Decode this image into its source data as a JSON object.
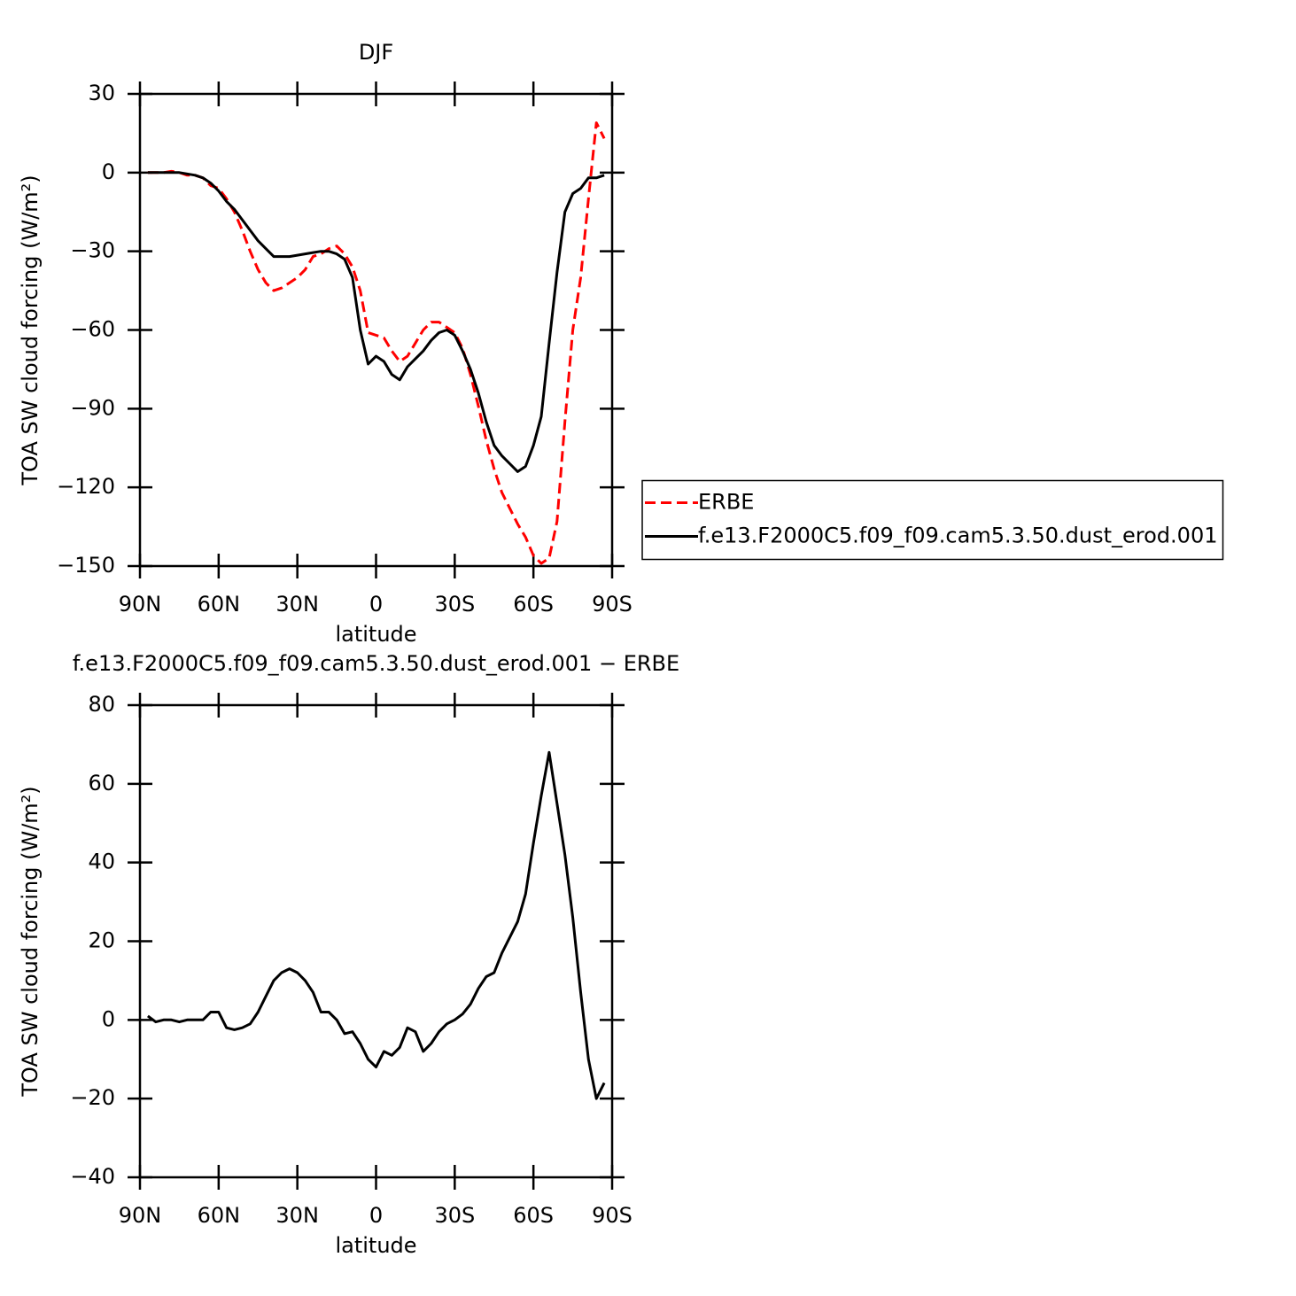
{
  "chart_data": [
    {
      "type": "line",
      "title": "DJF",
      "xlabel": "latitude",
      "ylabel": "TOA SW cloud forcing (W/m²)",
      "x": [
        87,
        84,
        81,
        78,
        75,
        72,
        69,
        66,
        63,
        60,
        57,
        54,
        51,
        48,
        45,
        42,
        39,
        36,
        33,
        30,
        27,
        24,
        21,
        18,
        15,
        12,
        9,
        6,
        3,
        0,
        -3,
        -6,
        -9,
        -12,
        -15,
        -18,
        -21,
        -24,
        -27,
        -30,
        -33,
        -36,
        -39,
        -42,
        -45,
        -48,
        -51,
        -54,
        -57,
        -60,
        -63,
        -66,
        -69,
        -72,
        -75,
        -78,
        -81,
        -84,
        -87
      ],
      "series": [
        {
          "name": "ERBE",
          "color": "#ff0000",
          "dashed": true,
          "values": [
            0,
            0,
            0,
            0.5,
            0,
            -1,
            -1,
            -2,
            -5,
            -6,
            -10,
            -15,
            -22,
            -30,
            -37,
            -42,
            -45,
            -44,
            -42,
            -40,
            -37,
            -32,
            -31,
            -29,
            -28,
            -31,
            -36,
            -45,
            -61,
            -62,
            -63,
            -68,
            -72,
            -70,
            -65,
            -60,
            -57,
            -57,
            -59,
            -61,
            -67,
            -77,
            -89,
            -102,
            -113,
            -122,
            -128,
            -134,
            -139,
            -146,
            -149,
            -147,
            -133,
            -95,
            -60,
            -40,
            -10,
            19,
            13
          ]
        },
        {
          "name": "f.e13.F2000C5.f09_f09.cam5.3.50.dust_erod.001",
          "color": "#000000",
          "dashed": false,
          "values": [
            0,
            0,
            0,
            0,
            0,
            -0.5,
            -1,
            -2,
            -4,
            -7,
            -11,
            -14,
            -18,
            -22,
            -26,
            -29,
            -32,
            -32,
            -32,
            -31.5,
            -31,
            -30.5,
            -30,
            -30,
            -31,
            -33,
            -40,
            -60,
            -73,
            -70,
            -72,
            -77,
            -79,
            -74,
            -71,
            -68,
            -64,
            -61,
            -60,
            -62,
            -68,
            -75,
            -84,
            -95,
            -104,
            -108,
            -111,
            -114,
            -112,
            -104,
            -93,
            -65,
            -38,
            -15,
            -8,
            -6,
            -2,
            -2,
            -1
          ]
        }
      ],
      "xlim": [
        90,
        -90
      ],
      "xticks": [
        {
          "value": 90,
          "label": "90N"
        },
        {
          "value": 60,
          "label": "60N"
        },
        {
          "value": 30,
          "label": "30N"
        },
        0,
        {
          "value": -30,
          "label": "30S"
        },
        {
          "value": -60,
          "label": "60S"
        },
        {
          "value": -90,
          "label": "90S"
        }
      ],
      "ylim": [
        -150,
        30
      ],
      "yticks": [
        {
          "value": -150,
          "label": "−150"
        },
        {
          "value": -120,
          "label": "−120"
        },
        {
          "value": -90,
          "label": "−90"
        },
        {
          "value": -60,
          "label": "−60"
        },
        {
          "value": -30,
          "label": "−30"
        },
        0,
        30
      ],
      "legend": "right"
    },
    {
      "type": "line",
      "title": "f.e13.F2000C5.f09_f09.cam5.3.50.dust_erod.001 − ERBE",
      "xlabel": "latitude",
      "ylabel": "TOA SW cloud forcing (W/m²)",
      "x": [
        87,
        84,
        81,
        78,
        75,
        72,
        69,
        66,
        63,
        60,
        57,
        54,
        51,
        48,
        45,
        42,
        39,
        36,
        33,
        30,
        27,
        24,
        21,
        18,
        15,
        12,
        9,
        6,
        3,
        0,
        -3,
        -6,
        -9,
        -12,
        -15,
        -18,
        -21,
        -24,
        -27,
        -30,
        -33,
        -36,
        -39,
        -42,
        -45,
        -48,
        -51,
        -54,
        -57,
        -60,
        -63,
        -66,
        -69,
        -72,
        -75,
        -78,
        -81,
        -84,
        -87
      ],
      "series": [
        {
          "color": "#000000",
          "dashed": false,
          "values": [
            1,
            -0.5,
            0,
            0,
            -0.5,
            0,
            0,
            0,
            2,
            2,
            -2,
            -2.5,
            -2,
            -1,
            2,
            6,
            10,
            12,
            13,
            12,
            10,
            7,
            2,
            2,
            0,
            -3.5,
            -3,
            -6,
            -10,
            -12,
            -8,
            -9,
            -7,
            -2,
            -3,
            -8,
            -6,
            -3,
            -1,
            0,
            1.5,
            4,
            8,
            11,
            12,
            17,
            21,
            25,
            32,
            45,
            57,
            68,
            55,
            42,
            26,
            7,
            -10,
            -20,
            -16
          ]
        }
      ],
      "xlim": [
        90,
        -90
      ],
      "xticks": [
        {
          "value": 90,
          "label": "90N"
        },
        {
          "value": 60,
          "label": "60N"
        },
        {
          "value": 30,
          "label": "30N"
        },
        0,
        {
          "value": -30,
          "label": "30S"
        },
        {
          "value": -60,
          "label": "60S"
        },
        {
          "value": -90,
          "label": "90S"
        }
      ],
      "ylim": [
        -40,
        80
      ],
      "yticks": [
        {
          "value": -40,
          "label": "−40"
        },
        {
          "value": -20,
          "label": "−20"
        },
        0,
        20,
        40,
        60,
        80
      ]
    }
  ]
}
